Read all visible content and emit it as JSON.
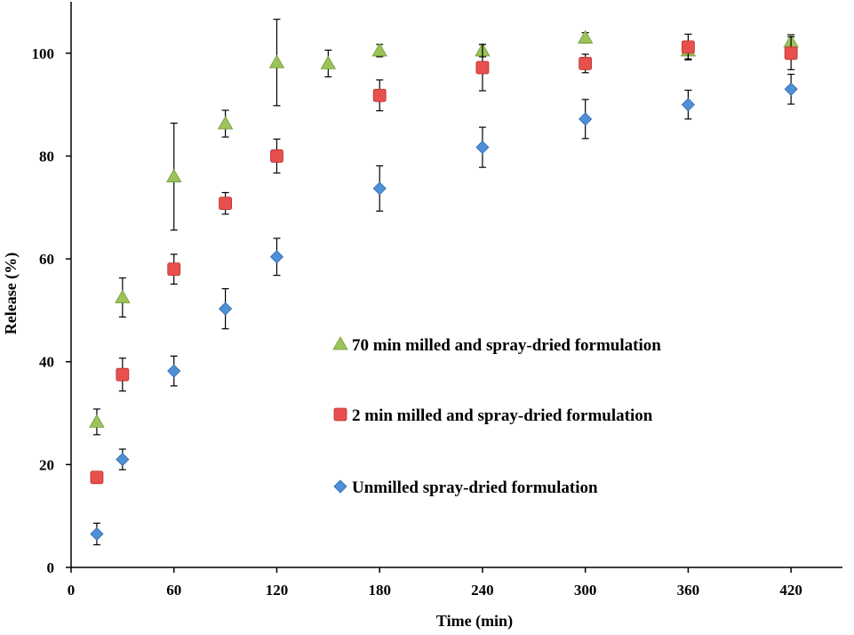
{
  "chart_data": {
    "type": "scatter",
    "title": "",
    "xlabel": "Time (min)",
    "ylabel": "Release (%)",
    "xlim": [
      0,
      450
    ],
    "ylim": [
      0,
      110
    ],
    "xticks": [
      0,
      60,
      120,
      180,
      240,
      300,
      360,
      420
    ],
    "yticks": [
      0,
      20,
      40,
      60,
      80,
      100
    ],
    "grid": false,
    "legend_position": "center-right",
    "series": [
      {
        "name": "70 min milled and spray-dried formulation",
        "marker": "triangle",
        "color": "#9bc35a",
        "points": [
          {
            "x": 15,
            "y": 28.3,
            "err": 2.5
          },
          {
            "x": 30,
            "y": 52.5,
            "err": 3.8
          },
          {
            "x": 60,
            "y": 76.0,
            "err": 10.4
          },
          {
            "x": 90,
            "y": 86.3,
            "err": 2.6
          },
          {
            "x": 120,
            "y": 98.2,
            "err": 8.4
          },
          {
            "x": 150,
            "y": 98.0,
            "err": 2.6
          },
          {
            "x": 180,
            "y": 100.5,
            "err": 1.2
          },
          {
            "x": 240,
            "y": 100.5,
            "err": 1.2
          },
          {
            "x": 300,
            "y": 103.0,
            "err": 1.0
          },
          {
            "x": 360,
            "y": 100.5,
            "err": 1.6
          },
          {
            "x": 420,
            "y": 102.2,
            "err": 1.4
          }
        ]
      },
      {
        "name": "2 min milled and spray-dried formulation",
        "marker": "square",
        "color": "#e8504d",
        "points": [
          {
            "x": 15,
            "y": 17.5,
            "err": 0.8
          },
          {
            "x": 30,
            "y": 37.5,
            "err": 3.2
          },
          {
            "x": 60,
            "y": 58.0,
            "err": 2.9
          },
          {
            "x": 90,
            "y": 70.8,
            "err": 2.1
          },
          {
            "x": 120,
            "y": 80.0,
            "err": 3.3
          },
          {
            "x": 180,
            "y": 91.8,
            "err": 3.0
          },
          {
            "x": 240,
            "y": 97.2,
            "err": 4.5
          },
          {
            "x": 300,
            "y": 98.0,
            "err": 1.8
          },
          {
            "x": 360,
            "y": 101.2,
            "err": 2.5
          },
          {
            "x": 420,
            "y": 100.0,
            "err": 3.2
          }
        ]
      },
      {
        "name": "Unmilled spray-dried formulation",
        "marker": "diamond",
        "color": "#4f8fd6",
        "points": [
          {
            "x": 15,
            "y": 6.5,
            "err": 2.1
          },
          {
            "x": 30,
            "y": 21.0,
            "err": 2.0
          },
          {
            "x": 60,
            "y": 38.2,
            "err": 2.9
          },
          {
            "x": 90,
            "y": 50.3,
            "err": 3.9
          },
          {
            "x": 120,
            "y": 60.4,
            "err": 3.6
          },
          {
            "x": 180,
            "y": 73.7,
            "err": 4.4
          },
          {
            "x": 240,
            "y": 81.7,
            "err": 3.9
          },
          {
            "x": 300,
            "y": 87.2,
            "err": 3.8
          },
          {
            "x": 360,
            "y": 90.0,
            "err": 2.8
          },
          {
            "x": 420,
            "y": 93.0,
            "err": 2.9
          }
        ]
      }
    ]
  }
}
